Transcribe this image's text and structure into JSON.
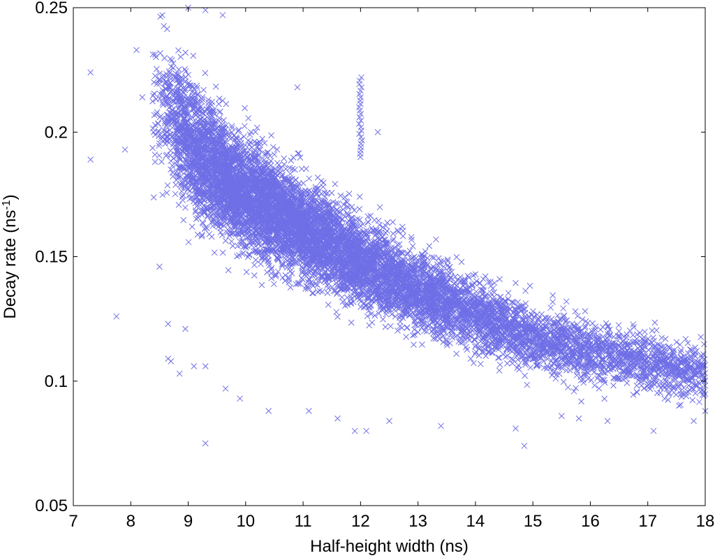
{
  "chart_data": {
    "type": "scatter",
    "title": "",
    "xlabel": "Half-height width (ns)",
    "ylabel": "Decay rate (ns-1)",
    "ylabel_parts": {
      "base": "Decay rate (ns",
      "sup": "-1",
      "close": ")"
    },
    "xlim": [
      7,
      18
    ],
    "ylim": [
      0.05,
      0.25
    ],
    "x_ticks": [
      7,
      8,
      9,
      10,
      11,
      12,
      13,
      14,
      15,
      16,
      17,
      18
    ],
    "y_ticks": [
      0.05,
      0.1,
      0.15,
      0.2,
      0.25
    ],
    "x_tick_labels": [
      "7",
      "8",
      "9",
      "10",
      "11",
      "12",
      "13",
      "14",
      "15",
      "16",
      "17",
      "18"
    ],
    "y_tick_labels": [
      "0.05",
      "0.1",
      "0.15",
      "0.2",
      "0.25"
    ],
    "grid": false,
    "legend": "none",
    "marker": "x",
    "colors": {
      "marker": "#6f6fe6",
      "axes": "#000000",
      "background": "#ffffff"
    },
    "series": [
      {
        "trend": {
          "x": [
            8.5,
            9,
            9.5,
            10,
            11,
            12,
            13,
            14,
            15,
            16,
            17,
            18
          ],
          "y": [
            0.212,
            0.196,
            0.184,
            0.175,
            0.161,
            0.148,
            0.136,
            0.126,
            0.118,
            0.112,
            0.107,
            0.103
          ]
        },
        "spread_y": [
          0.022,
          0.02,
          0.018,
          0.017,
          0.015,
          0.014,
          0.012,
          0.011,
          0.01,
          0.01,
          0.009,
          0.009
        ],
        "density_x": [
          8.5,
          9,
          9.5,
          10,
          11,
          12,
          13,
          14,
          15,
          16,
          17,
          18
        ],
        "density_w": [
          0.5,
          1.6,
          2.2,
          2.2,
          1.9,
          1.5,
          1.2,
          0.9,
          0.7,
          0.55,
          0.45,
          0.35
        ],
        "point_count": 9000,
        "outliers": [
          {
            "x": 7.3,
            "y": 0.224
          },
          {
            "x": 7.3,
            "y": 0.189
          },
          {
            "x": 7.75,
            "y": 0.126
          },
          {
            "x": 7.9,
            "y": 0.193
          },
          {
            "x": 8.1,
            "y": 0.233
          },
          {
            "x": 8.2,
            "y": 0.214
          },
          {
            "x": 8.5,
            "y": 0.146
          },
          {
            "x": 8.65,
            "y": 0.123
          },
          {
            "x": 8.65,
            "y": 0.109
          },
          {
            "x": 8.7,
            "y": 0.108
          },
          {
            "x": 8.85,
            "y": 0.103
          },
          {
            "x": 8.95,
            "y": 0.121
          },
          {
            "x": 9.1,
            "y": 0.106
          },
          {
            "x": 9.3,
            "y": 0.075
          },
          {
            "x": 9.3,
            "y": 0.106
          },
          {
            "x": 9.65,
            "y": 0.097
          },
          {
            "x": 9.9,
            "y": 0.093
          },
          {
            "x": 10.4,
            "y": 0.088
          },
          {
            "x": 11.1,
            "y": 0.088
          },
          {
            "x": 11.6,
            "y": 0.085
          },
          {
            "x": 11.9,
            "y": 0.08
          },
          {
            "x": 12.1,
            "y": 0.08
          },
          {
            "x": 12.5,
            "y": 0.084
          },
          {
            "x": 13.4,
            "y": 0.082
          },
          {
            "x": 14.7,
            "y": 0.081
          },
          {
            "x": 14.85,
            "y": 0.074
          },
          {
            "x": 15.5,
            "y": 0.086
          },
          {
            "x": 15.8,
            "y": 0.085
          },
          {
            "x": 16.3,
            "y": 0.084
          },
          {
            "x": 17.1,
            "y": 0.08
          },
          {
            "x": 17.8,
            "y": 0.084
          },
          {
            "x": 18.0,
            "y": 0.088
          },
          {
            "x": 12.3,
            "y": 0.2
          },
          {
            "x": 10.9,
            "y": 0.218
          },
          {
            "x": 9.6,
            "y": 0.247
          },
          {
            "x": 9.0,
            "y": 0.25
          },
          {
            "x": 8.55,
            "y": 0.247
          },
          {
            "x": 9.3,
            "y": 0.249
          }
        ],
        "vertical_streak": {
          "x": 12.0,
          "y_from": 0.19,
          "y_to": 0.222,
          "count": 25
        }
      }
    ]
  }
}
